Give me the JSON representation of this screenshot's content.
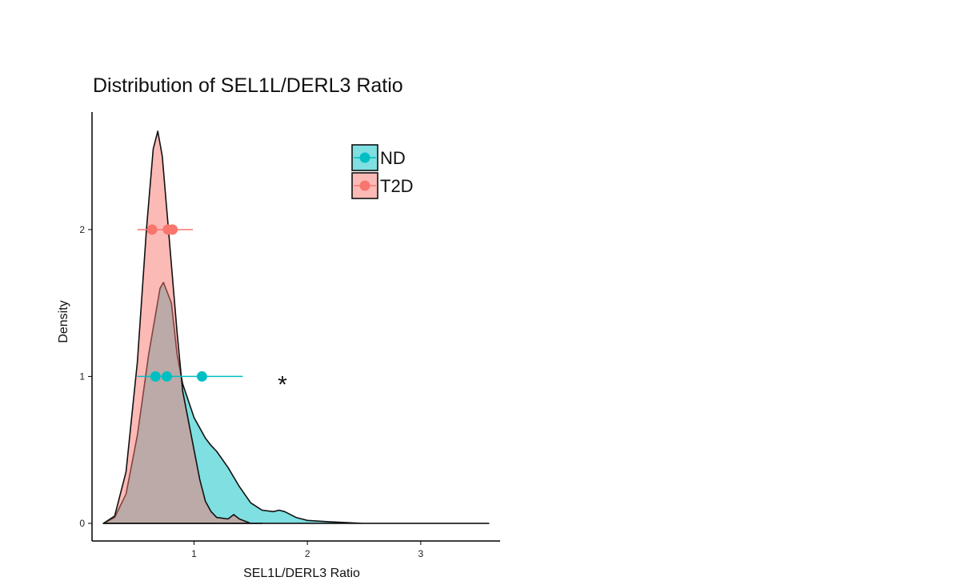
{
  "chart_data": {
    "type": "area",
    "title": "Distribution of SEL1L/DERL3 Ratio",
    "xlabel": "SEL1L/DERL3 Ratio",
    "ylabel": "Density",
    "xlim": [
      0.1,
      3.7
    ],
    "ylim": [
      -0.12,
      2.8
    ],
    "x_ticks": [
      "1",
      "2",
      "3"
    ],
    "y_ticks": [
      "0",
      "1",
      "2"
    ],
    "grid": false,
    "legend_position": "top-right",
    "annotation": "*",
    "annotation_xy": [
      1.78,
      1.0
    ],
    "series": [
      {
        "name": "ND",
        "color": "#00BFC4",
        "fill_opacity": 0.5,
        "density": [
          [
            0.2,
            0.0
          ],
          [
            0.3,
            0.04
          ],
          [
            0.4,
            0.2
          ],
          [
            0.5,
            0.6
          ],
          [
            0.6,
            1.15
          ],
          [
            0.7,
            1.6
          ],
          [
            0.73,
            1.64
          ],
          [
            0.8,
            1.5
          ],
          [
            0.85,
            1.15
          ],
          [
            0.9,
            0.95
          ],
          [
            1.0,
            0.72
          ],
          [
            1.1,
            0.58
          ],
          [
            1.15,
            0.53
          ],
          [
            1.2,
            0.49
          ],
          [
            1.3,
            0.38
          ],
          [
            1.4,
            0.25
          ],
          [
            1.5,
            0.14
          ],
          [
            1.6,
            0.09
          ],
          [
            1.7,
            0.08
          ],
          [
            1.75,
            0.09
          ],
          [
            1.8,
            0.08
          ],
          [
            1.9,
            0.04
          ],
          [
            2.0,
            0.02
          ],
          [
            2.2,
            0.01
          ],
          [
            2.5,
            0.0
          ],
          [
            3.0,
            0.0
          ],
          [
            3.6,
            0.0
          ]
        ],
        "errorbar": {
          "y": 1.0,
          "low": 0.5,
          "q1": 0.66,
          "median": 0.76,
          "mean": 1.07,
          "high": 1.43
        }
      },
      {
        "name": "T2D",
        "color": "#F8766D",
        "fill_opacity": 0.5,
        "density": [
          [
            0.2,
            0.0
          ],
          [
            0.3,
            0.05
          ],
          [
            0.4,
            0.35
          ],
          [
            0.5,
            1.1
          ],
          [
            0.58,
            2.0
          ],
          [
            0.64,
            2.55
          ],
          [
            0.68,
            2.67
          ],
          [
            0.72,
            2.5
          ],
          [
            0.78,
            1.95
          ],
          [
            0.85,
            1.3
          ],
          [
            0.9,
            0.9
          ],
          [
            1.0,
            0.5
          ],
          [
            1.05,
            0.3
          ],
          [
            1.1,
            0.15
          ],
          [
            1.15,
            0.08
          ],
          [
            1.2,
            0.04
          ],
          [
            1.3,
            0.03
          ],
          [
            1.35,
            0.06
          ],
          [
            1.4,
            0.03
          ],
          [
            1.5,
            0.0
          ],
          [
            1.6,
            0.0
          ]
        ],
        "errorbar": {
          "y": 2.0,
          "low": 0.5,
          "q1": 0.63,
          "median": 0.77,
          "mean": 0.81,
          "high": 0.99
        }
      }
    ]
  }
}
